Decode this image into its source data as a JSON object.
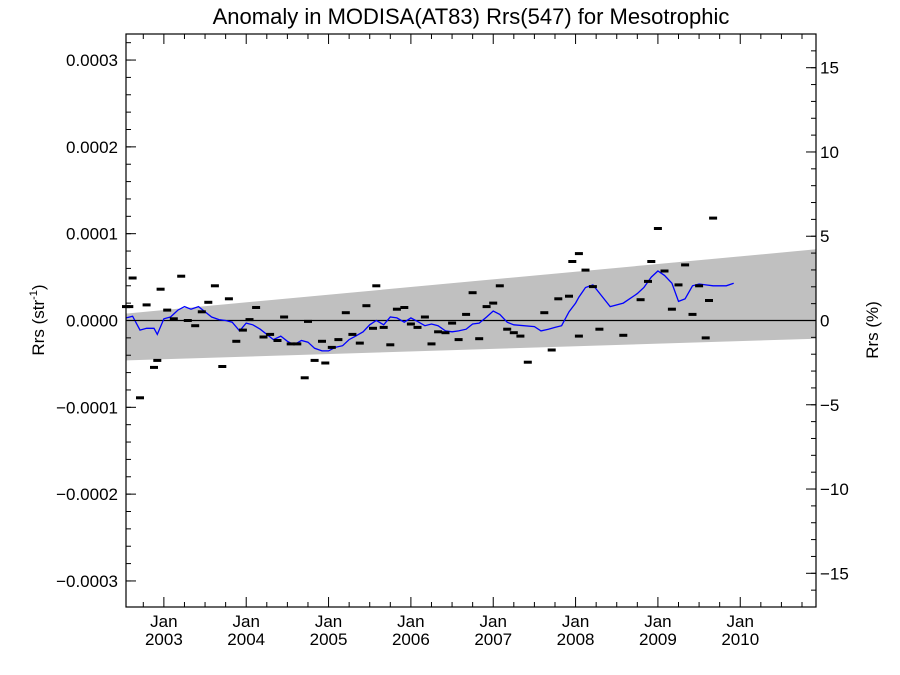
{
  "chart_data": {
    "type": "scatter",
    "title": "Anomaly in MODISA(AT83) Rrs(547) for Mesotrophic",
    "ylabel": "Rrs (str",
    "ylabel_superscript": "-1",
    "ylabel_close": ")",
    "y2label": "Rrs (%)",
    "xlim": [
      2002.54,
      2010.92
    ],
    "ylim": [
      -0.00033,
      0.00033
    ],
    "y2lim": [
      -17,
      17
    ],
    "y_ticks": [
      {
        "value": 0.0003,
        "label": "0.0003"
      },
      {
        "value": 0.0002,
        "label": "0.0002"
      },
      {
        "value": 0.0001,
        "label": "0.0001"
      },
      {
        "value": 0.0,
        "label": "0.0000"
      },
      {
        "value": -0.0001,
        "label": "−0.0001"
      },
      {
        "value": -0.0002,
        "label": "−0.0002"
      },
      {
        "value": -0.0003,
        "label": "−0.0003"
      }
    ],
    "y2_ticks": [
      {
        "value": 15,
        "label": "15"
      },
      {
        "value": 10,
        "label": "10"
      },
      {
        "value": 5,
        "label": "5"
      },
      {
        "value": 0,
        "label": "0"
      },
      {
        "value": -5,
        "label": "−5"
      },
      {
        "value": -10,
        "label": "−10"
      },
      {
        "value": -15,
        "label": "−15"
      }
    ],
    "x_ticks": [
      {
        "value": 2003.0,
        "month": "Jan",
        "year": "2003"
      },
      {
        "value": 2004.0,
        "month": "Jan",
        "year": "2004"
      },
      {
        "value": 2005.0,
        "month": "Jan",
        "year": "2005"
      },
      {
        "value": 2006.0,
        "month": "Jan",
        "year": "2006"
      },
      {
        "value": 2007.0,
        "month": "Jan",
        "year": "2007"
      },
      {
        "value": 2008.0,
        "month": "Jan",
        "year": "2008"
      },
      {
        "value": 2009.0,
        "month": "Jan",
        "year": "2009"
      },
      {
        "value": 2010.0,
        "month": "Jan",
        "year": "2010"
      }
    ],
    "band": {
      "color": "#c0c0c0",
      "start": {
        "x": 2002.54,
        "upper": 8e-06,
        "lower": -4.6e-05
      },
      "end": {
        "x": 2010.92,
        "upper": 8.2e-05,
        "lower": -2.1e-05
      }
    },
    "zero_line_color": "#000000",
    "points_color": "#000000",
    "points": [
      [
        2002.54,
        1.6e-05
      ],
      [
        2002.58,
        1.6e-05
      ],
      [
        2002.62,
        4.9e-05
      ],
      [
        2002.71,
        -8.9e-05
      ],
      [
        2002.79,
        1.8e-05
      ],
      [
        2002.88,
        -5.4e-05
      ],
      [
        2002.92,
        -4.6e-05
      ],
      [
        2002.96,
        3.6e-05
      ],
      [
        2003.04,
        1.2e-05
      ],
      [
        2003.12,
        2e-06
      ],
      [
        2003.21,
        5.1e-05
      ],
      [
        2003.29,
        0.0
      ],
      [
        2003.38,
        -6e-06
      ],
      [
        2003.46,
        1e-05
      ],
      [
        2003.54,
        2.1e-05
      ],
      [
        2003.62,
        4e-05
      ],
      [
        2003.71,
        -5.3e-05
      ],
      [
        2003.79,
        2.5e-05
      ],
      [
        2003.88,
        -2.4e-05
      ],
      [
        2003.96,
        -1.1e-05
      ],
      [
        2004.04,
        1e-06
      ],
      [
        2004.12,
        1.5e-05
      ],
      [
        2004.21,
        -1.9e-05
      ],
      [
        2004.29,
        -1.6e-05
      ],
      [
        2004.38,
        -2.3e-05
      ],
      [
        2004.46,
        4e-06
      ],
      [
        2004.54,
        -2.7e-05
      ],
      [
        2004.62,
        -2.7e-05
      ],
      [
        2004.71,
        -6.6e-05
      ],
      [
        2004.75,
        -1e-06
      ],
      [
        2004.83,
        -4.6e-05
      ],
      [
        2004.92,
        -2.4e-05
      ],
      [
        2004.96,
        -4.9e-05
      ],
      [
        2005.04,
        -3.1e-05
      ],
      [
        2005.12,
        -2.2e-05
      ],
      [
        2005.21,
        9e-06
      ],
      [
        2005.29,
        -1.6e-05
      ],
      [
        2005.38,
        -2.6e-05
      ],
      [
        2005.46,
        1.7e-05
      ],
      [
        2005.54,
        -9e-06
      ],
      [
        2005.58,
        4e-05
      ],
      [
        2005.67,
        -8e-06
      ],
      [
        2005.75,
        -2.8e-05
      ],
      [
        2005.83,
        1.3e-05
      ],
      [
        2005.92,
        1.5e-05
      ],
      [
        2006.0,
        -4e-06
      ],
      [
        2006.08,
        -8e-06
      ],
      [
        2006.17,
        4e-06
      ],
      [
        2006.25,
        -2.7e-05
      ],
      [
        2006.33,
        -1.3e-05
      ],
      [
        2006.42,
        -1.4e-05
      ],
      [
        2006.5,
        -3e-06
      ],
      [
        2006.58,
        -2.2e-05
      ],
      [
        2006.67,
        7e-06
      ],
      [
        2006.75,
        3.2e-05
      ],
      [
        2006.83,
        -2.1e-05
      ],
      [
        2006.92,
        1.6e-05
      ],
      [
        2007.0,
        2e-05
      ],
      [
        2007.08,
        4e-05
      ],
      [
        2007.17,
        -1e-05
      ],
      [
        2007.25,
        -1.4e-05
      ],
      [
        2007.33,
        -1.8e-05
      ],
      [
        2007.42,
        -4.8e-05
      ],
      [
        2007.62,
        9e-06
      ],
      [
        2007.71,
        -3.4e-05
      ],
      [
        2007.79,
        2.5e-05
      ],
      [
        2007.92,
        2.8e-05
      ],
      [
        2007.96,
        6.8e-05
      ],
      [
        2008.04,
        7.7e-05
      ],
      [
        2008.04,
        -1.8e-05
      ],
      [
        2008.12,
        5.8e-05
      ],
      [
        2008.21,
        3.9e-05
      ],
      [
        2008.29,
        -1e-05
      ],
      [
        2008.58,
        -1.7e-05
      ],
      [
        2008.79,
        2.4e-05
      ],
      [
        2008.88,
        4.5e-05
      ],
      [
        2008.92,
        6.8e-05
      ],
      [
        2009.0,
        0.000106
      ],
      [
        2009.08,
        5.7e-05
      ],
      [
        2009.17,
        1.3e-05
      ],
      [
        2009.25,
        4.1e-05
      ],
      [
        2009.33,
        6.4e-05
      ],
      [
        2009.42,
        7e-06
      ],
      [
        2009.5,
        4e-05
      ],
      [
        2009.58,
        -2e-05
      ],
      [
        2009.62,
        2.3e-05
      ],
      [
        2009.67,
        0.000118
      ]
    ],
    "series": [
      {
        "color": "#0000ff",
        "x": [
          2002.54,
          2002.62,
          2002.71,
          2002.79,
          2002.88,
          2002.92,
          2003.0,
          2003.08,
          2003.17,
          2003.25,
          2003.33,
          2003.42,
          2003.5,
          2003.58,
          2003.67,
          2003.75,
          2003.83,
          2003.92,
          2004.0,
          2004.08,
          2004.17,
          2004.25,
          2004.33,
          2004.42,
          2004.5,
          2004.58,
          2004.67,
          2004.75,
          2004.83,
          2004.92,
          2005.0,
          2005.08,
          2005.17,
          2005.25,
          2005.33,
          2005.42,
          2005.5,
          2005.58,
          2005.67,
          2005.75,
          2005.83,
          2005.92,
          2006.0,
          2006.08,
          2006.17,
          2006.25,
          2006.33,
          2006.42,
          2006.5,
          2006.58,
          2006.67,
          2006.75,
          2006.83,
          2006.92,
          2007.0,
          2007.08,
          2007.17,
          2007.25,
          2007.5,
          2007.58,
          2007.67,
          2007.75,
          2007.83,
          2007.92,
          2008.0,
          2008.04,
          2008.12,
          2008.21,
          2008.42,
          2008.58,
          2008.75,
          2008.83,
          2008.92,
          2009.0,
          2009.08,
          2009.17,
          2009.25,
          2009.33,
          2009.42,
          2009.5,
          2009.58,
          2009.67,
          2009.75,
          2009.83,
          2009.92
        ],
        "y": [
          3e-06,
          5e-06,
          -1.1e-05,
          -9e-06,
          -9e-06,
          -1.6e-05,
          2e-06,
          4e-06,
          1.2e-05,
          1.6e-05,
          1.3e-05,
          1.6e-05,
          1e-05,
          4e-06,
          1e-06,
          0.0,
          -2e-06,
          -1.2e-05,
          -3e-06,
          -5e-06,
          -1e-05,
          -1.6e-05,
          -2.2e-05,
          -1.8e-05,
          -2.4e-05,
          -2.8e-05,
          -2.3e-05,
          -2.5e-05,
          -3.2e-05,
          -3.5e-05,
          -3.5e-05,
          -3.1e-05,
          -2.9e-05,
          -2.2e-05,
          -1.8e-05,
          -1.3e-05,
          -5e-06,
          0.0,
          -5e-06,
          4e-06,
          3e-06,
          -2e-06,
          3e-06,
          -1e-06,
          -6e-06,
          -4e-06,
          -6e-06,
          -1.2e-05,
          -1.3e-05,
          -1.2e-05,
          -1e-05,
          -4e-06,
          -3e-06,
          4e-06,
          1.1e-05,
          7e-06,
          -2e-06,
          -5e-06,
          -7e-06,
          -1.2e-05,
          -1e-05,
          -8e-06,
          -6e-06,
          1e-05,
          2e-05,
          2.7e-05,
          3.8e-05,
          4.1e-05,
          1.6e-05,
          2e-05,
          3.1e-05,
          3.8e-05,
          5e-05,
          5.7e-05,
          5.2e-05,
          4.3e-05,
          2.2e-05,
          2.5e-05,
          4e-05,
          4.2e-05,
          4.1e-05,
          4e-05,
          4e-05,
          4e-05,
          4.3e-05
        ]
      }
    ]
  }
}
